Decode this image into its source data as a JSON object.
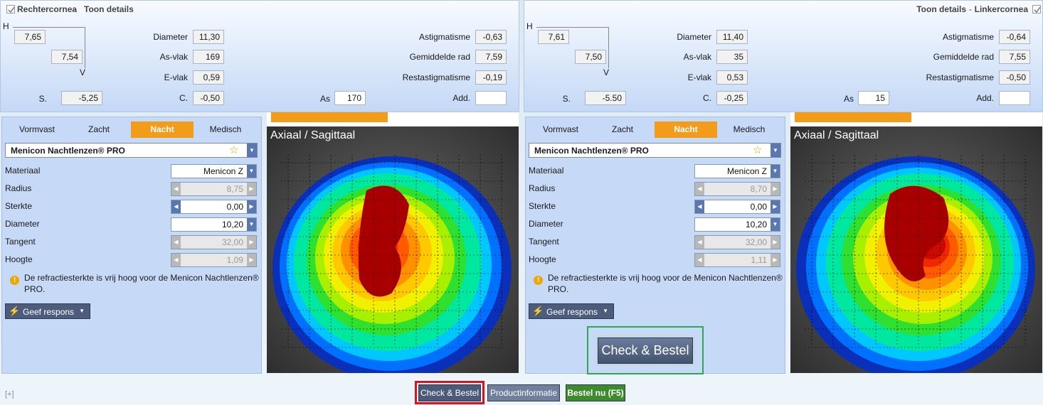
{
  "eyes": [
    {
      "title": "Rechtercornea",
      "separator": "-",
      "details_link": "Toon details",
      "align": "left",
      "h_label": "H",
      "h_value": "7,65",
      "v_label": "V",
      "v_value": "7,54",
      "sphere": {
        "label": "S.",
        "value": "-5,25"
      },
      "middle": [
        {
          "label": "Diameter",
          "value": "11,30"
        },
        {
          "label": "As-vlak",
          "value": "169"
        },
        {
          "label": "E-vlak",
          "value": "0,59"
        },
        {
          "label": "C.",
          "value": "-0,50"
        }
      ],
      "axis": {
        "label": "As",
        "value": "170"
      },
      "right": [
        {
          "label": "Astigmatisme",
          "value": "-0,63"
        },
        {
          "label": "Gemiddelde rad",
          "value": "7,59"
        },
        {
          "label": "Restastigmatisme",
          "value": "-0,19"
        },
        {
          "label": "Add."
        }
      ],
      "tabs": [
        {
          "label": "Vormvast"
        },
        {
          "label": "Zacht"
        },
        {
          "label": "Nacht",
          "active": true
        },
        {
          "label": "Medisch"
        }
      ],
      "lens": "Menicon Nachtlenzen® PRO",
      "params": [
        {
          "label": "Materiaal",
          "value": "Menicon Z",
          "control": "dropdown"
        },
        {
          "label": "Radius",
          "value": "8,75",
          "control": "stepper",
          "disabled": true
        },
        {
          "label": "Sterkte",
          "value": "0,00",
          "control": "stepper"
        },
        {
          "label": "Diameter",
          "value": "10,20",
          "control": "dropdown"
        },
        {
          "label": "Tangent",
          "value": "32,00",
          "control": "stepper",
          "disabled": true
        },
        {
          "label": "Hoogte",
          "value": "1,09",
          "control": "stepper",
          "disabled": true
        }
      ],
      "warning": "De refractiesterkte is vrij hoog voor de Menicon Nachtlenzen® PRO.",
      "feedback": "Geef respons",
      "map_title": "Axiaal / Sagittaal"
    },
    {
      "title": "Linkercornea",
      "separator": "-",
      "details_link": "Toon details",
      "align": "right",
      "h_label": "H",
      "h_value": "7,61",
      "v_label": "V",
      "v_value": "7,50",
      "sphere": {
        "label": "S.",
        "value": "-5.50"
      },
      "middle": [
        {
          "label": "Diameter",
          "value": "11,40"
        },
        {
          "label": "As-vlak",
          "value": "35"
        },
        {
          "label": "E-vlak",
          "value": "0,53"
        },
        {
          "label": "C.",
          "value": "-0,25"
        }
      ],
      "axis": {
        "label": "As",
        "value": "15"
      },
      "right": [
        {
          "label": "Astigmatisme",
          "value": "-0,64"
        },
        {
          "label": "Gemiddelde rad",
          "value": "7,55"
        },
        {
          "label": "Restastigmatisme",
          "value": "-0,50"
        },
        {
          "label": "Add."
        }
      ],
      "tabs": [
        {
          "label": "Vormvast"
        },
        {
          "label": "Zacht"
        },
        {
          "label": "Nacht",
          "active": true
        },
        {
          "label": "Medisch"
        }
      ],
      "lens": "Menicon Nachtlenzen® PRO",
      "params": [
        {
          "label": "Materiaal",
          "value": "Menicon Z",
          "control": "dropdown"
        },
        {
          "label": "Radius",
          "value": "8,70",
          "control": "stepper",
          "disabled": true
        },
        {
          "label": "Sterkte",
          "value": "0,00",
          "control": "stepper"
        },
        {
          "label": "Diameter",
          "value": "10,20",
          "control": "dropdown"
        },
        {
          "label": "Tangent",
          "value": "32,00",
          "control": "stepper",
          "disabled": true
        },
        {
          "label": "Hoogte",
          "value": "1,11",
          "control": "stepper",
          "disabled": true
        }
      ],
      "warning": "De refractiesterkte is vrij hoog voor de Menicon Nachtlenzen® PRO.",
      "feedback": "Geef respons",
      "map_title": "Axiaal / Sagittaal",
      "check_button": "Check & Bestel"
    }
  ],
  "footer": {
    "expand": "[+]",
    "buttons": [
      {
        "label": "Check & Bestel",
        "highlighted": true,
        "color": "#4b5a78"
      },
      {
        "label": "Productinformatie",
        "color": "#6f7f9c"
      },
      {
        "label": "Bestel nu (F5)",
        "color": "#3d8b2c"
      }
    ]
  }
}
